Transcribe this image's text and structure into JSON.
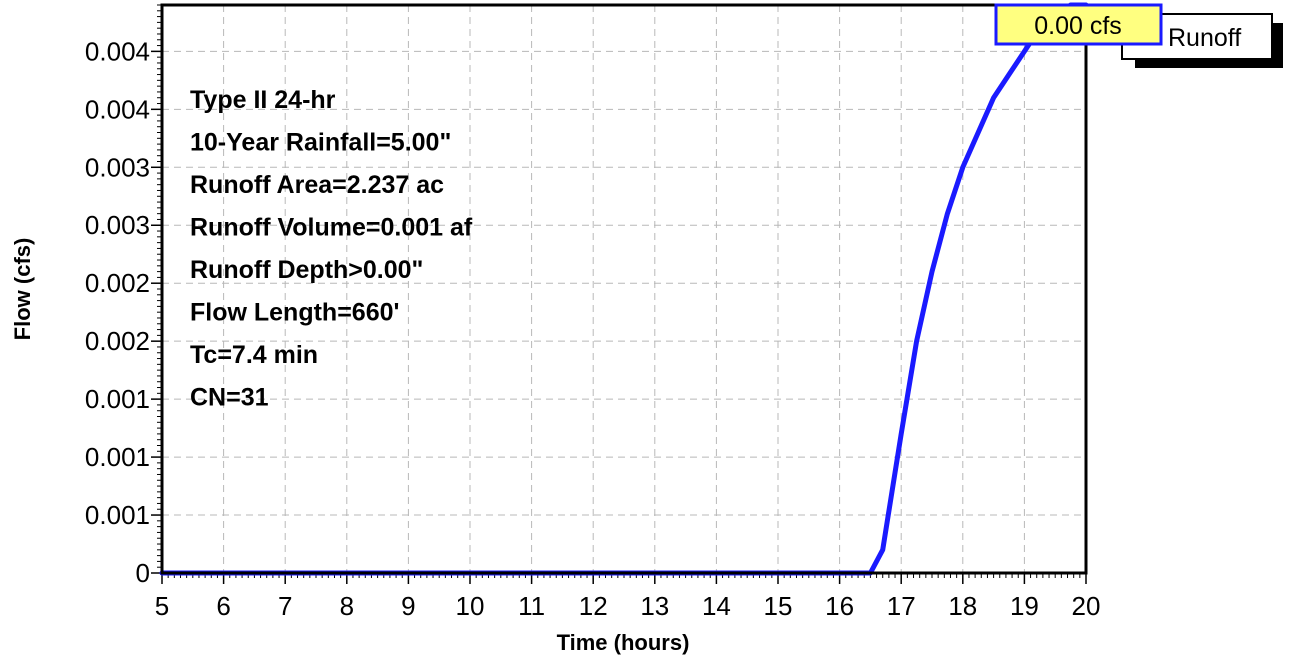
{
  "chart_data": {
    "type": "line",
    "xlabel": "Time  (hours)",
    "ylabel": "Flow  (cfs)",
    "xlim": [
      5,
      20
    ],
    "ylim": [
      0,
      0.0049
    ],
    "x_ticks": [
      5,
      6,
      7,
      8,
      9,
      10,
      11,
      12,
      13,
      14,
      15,
      16,
      17,
      18,
      19,
      20
    ],
    "x_tick_labels": [
      "5",
      "6",
      "7",
      "8",
      "9",
      "10",
      "11",
      "12",
      "13",
      "14",
      "15",
      "16",
      "17",
      "18",
      "19",
      "20"
    ],
    "y_ticks": [
      0,
      0.0005,
      0.001,
      0.0015,
      0.002,
      0.0025,
      0.003,
      0.0035,
      0.004,
      0.0045
    ],
    "y_tick_labels": [
      "0",
      "0.001",
      "0.001",
      "0.001",
      "0.002",
      "0.002",
      "0.003",
      "0.003",
      "0.004",
      "0.004"
    ],
    "grid": true,
    "legend_position": "top-right",
    "series": [
      {
        "name": "Runoff",
        "color": "#1a1aff",
        "x": [
          5,
          16.0,
          16.5,
          16.7,
          17.0,
          17.25,
          17.5,
          17.75,
          18.0,
          18.25,
          18.5,
          18.75,
          19.0,
          19.25,
          19.5,
          19.75,
          20.0
        ],
        "y": [
          0,
          0,
          0,
          0.0002,
          0.0012,
          0.002,
          0.0026,
          0.0031,
          0.0035,
          0.0038,
          0.0041,
          0.0043,
          0.0045,
          0.0047,
          0.0048,
          0.0049,
          0.0049
        ]
      }
    ],
    "peak_label": "0.00 cfs",
    "peak_label_color": "#ffff80",
    "legend_label": "Runoff",
    "annotations": [
      "Type II 24-hr",
      "10-Year Rainfall=5.00\"",
      "Runoff Area=2.237 ac",
      "Runoff Volume=0.001 af",
      "Runoff Depth>0.00\"",
      "Flow Length=660'",
      "Tc=7.4 min",
      "CN=31"
    ]
  }
}
